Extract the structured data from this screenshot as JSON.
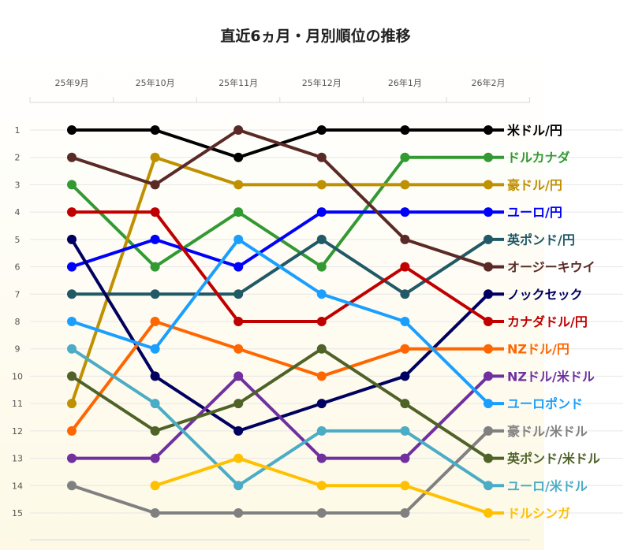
{
  "chart_data": {
    "type": "line",
    "subtype": "bump",
    "title": "直近6ヵ月・月別順位の推移",
    "categories": [
      "25年9月",
      "25年10月",
      "25年11月",
      "25年12月",
      "26年1月",
      "26年2月"
    ],
    "ylim": [
      1,
      15
    ],
    "y_reversed": true,
    "y_ticks": [
      1,
      2,
      3,
      4,
      5,
      6,
      7,
      8,
      9,
      10,
      11,
      12,
      13,
      14,
      15
    ],
    "grid": true,
    "legend": "right, labels at end of each line",
    "series": [
      {
        "name": "米ドル/円",
        "color": "#000000",
        "values": [
          1,
          1,
          2,
          1,
          1,
          1
        ]
      },
      {
        "name": "ドルカナダ",
        "color": "#339933",
        "values": [
          3,
          6,
          4,
          6,
          2,
          2
        ]
      },
      {
        "name": "豪ドル/円",
        "color": "#bf9000",
        "values": [
          11,
          2,
          3,
          3,
          3,
          3
        ]
      },
      {
        "name": "ユーロ/円",
        "color": "#0000ff",
        "values": [
          6,
          5,
          6,
          4,
          4,
          4
        ]
      },
      {
        "name": "英ポンド/円",
        "color": "#215967",
        "values": [
          7,
          7,
          7,
          5,
          7,
          5
        ]
      },
      {
        "name": "オージーキウイ",
        "color": "#5a2a27",
        "values": [
          2,
          3,
          1,
          2,
          5,
          6
        ]
      },
      {
        "name": "ノックセック",
        "color": "#000060",
        "values": [
          5,
          10,
          12,
          11,
          10,
          7
        ]
      },
      {
        "name": "カナダドル/円",
        "color": "#c00000",
        "values": [
          4,
          4,
          8,
          8,
          6,
          8
        ]
      },
      {
        "name": "NZドル/円",
        "color": "#ff6600",
        "values": [
          12,
          8,
          9,
          10,
          9,
          9
        ]
      },
      {
        "name": "NZドル/米ドル",
        "color": "#7030a0",
        "values": [
          13,
          13,
          10,
          13,
          13,
          10
        ]
      },
      {
        "name": "ユーロポンド",
        "color": "#1a9fff",
        "values": [
          8,
          9,
          5,
          7,
          8,
          11
        ]
      },
      {
        "name": "豪ドル/米ドル",
        "color": "#808080",
        "values": [
          14,
          15,
          15,
          15,
          15,
          12
        ]
      },
      {
        "name": "英ポンド/米ドル",
        "color": "#4f6228",
        "values": [
          10,
          12,
          11,
          9,
          11,
          13
        ]
      },
      {
        "name": "ユーロ/米ドル",
        "color": "#4bacc6",
        "values": [
          9,
          11,
          14,
          12,
          12,
          14
        ]
      },
      {
        "name": "ドルシンガ",
        "color": "#ffc000",
        "values": [
          null,
          14,
          13,
          14,
          14,
          15
        ]
      }
    ]
  }
}
